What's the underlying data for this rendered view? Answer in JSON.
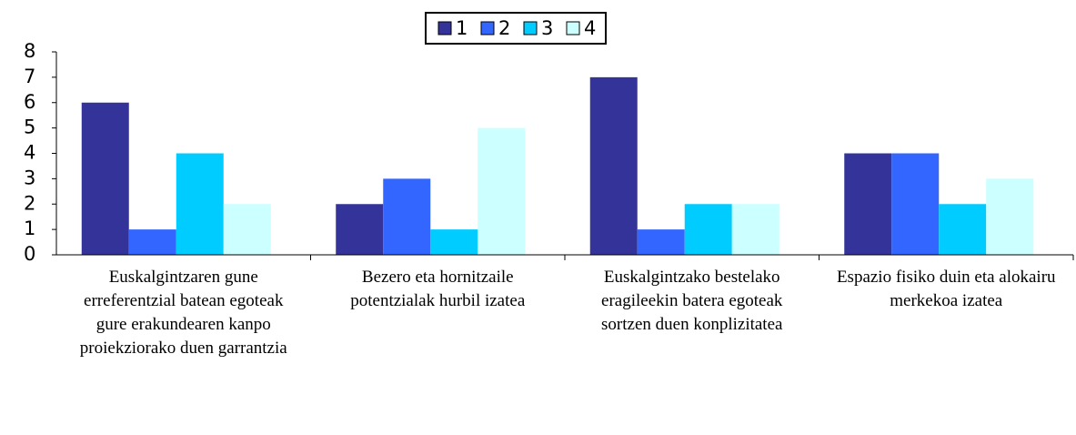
{
  "chart_data": {
    "type": "bar",
    "categories": [
      "Euskalgintzaren gune erreferentzial batean egoteak gure erakundearen kanpo proiekziorako duen garrantzia",
      "Bezero eta hornitzaile potentzialak hurbil izatea",
      "Euskalgintzako bestelako eragileekin batera egoteak sortzen duen konplizitatea",
      "Espazio fisiko duin eta alokairu merkekoa izatea"
    ],
    "series": [
      {
        "name": "1",
        "color": "#333399",
        "values": [
          6,
          2,
          7,
          4
        ]
      },
      {
        "name": "2",
        "color": "#3366ff",
        "values": [
          1,
          3,
          1,
          4
        ]
      },
      {
        "name": "3",
        "color": "#00ccff",
        "values": [
          4,
          1,
          2,
          2
        ]
      },
      {
        "name": "4",
        "color": "#ccffff",
        "values": [
          2,
          5,
          2,
          3
        ]
      }
    ],
    "ylim": [
      0,
      8
    ],
    "yticks": [
      0,
      1,
      2,
      3,
      4,
      5,
      6,
      7,
      8
    ],
    "grid": false,
    "legend": "top"
  }
}
